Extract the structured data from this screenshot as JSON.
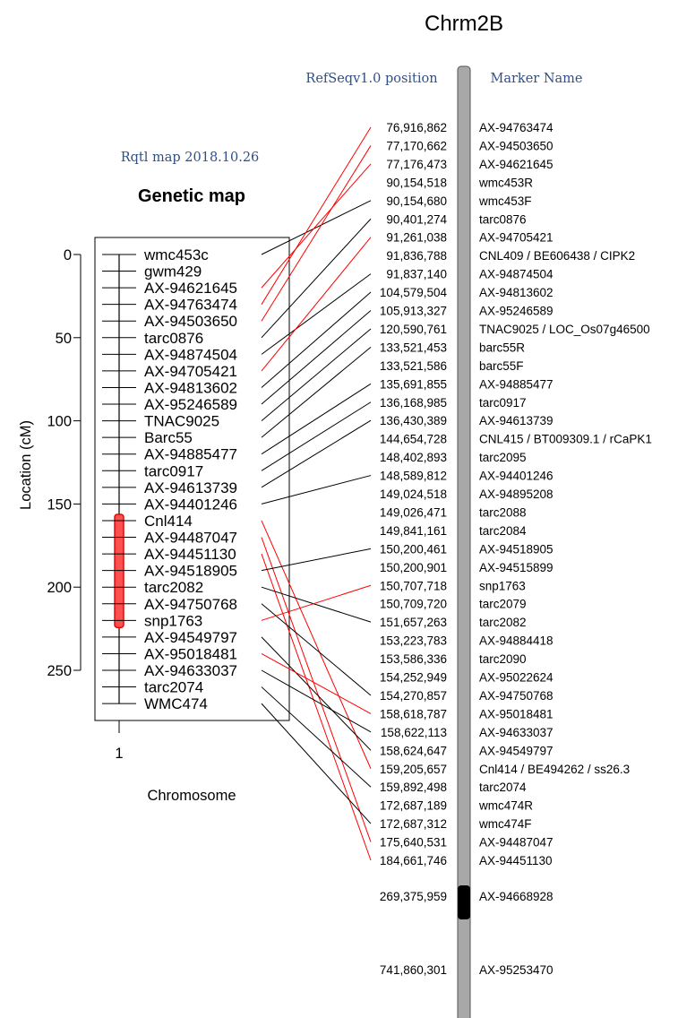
{
  "title": "Chrm2B",
  "map_version": "Rqtl map 2018.10.26",
  "genetic_map": {
    "title": "Genetic map",
    "y_label": "Location (cM)",
    "x_label": "Chromosome",
    "x_tick": "1",
    "y_ticks": [
      "0",
      "50",
      "100",
      "150",
      "200",
      "250"
    ],
    "markers": [
      {
        "name": "wmc453c",
        "cM": 0
      },
      {
        "name": "gwm429",
        "cM": 10
      },
      {
        "name": "AX-94621645",
        "cM": 20
      },
      {
        "name": "AX-94763474",
        "cM": 30
      },
      {
        "name": "AX-94503650",
        "cM": 40
      },
      {
        "name": "tarc0876",
        "cM": 50
      },
      {
        "name": "AX-94874504",
        "cM": 60
      },
      {
        "name": "AX-94705421",
        "cM": 70
      },
      {
        "name": "AX-94813602",
        "cM": 80
      },
      {
        "name": "AX-95246589",
        "cM": 90
      },
      {
        "name": "TNAC9025",
        "cM": 100
      },
      {
        "name": "Barc55",
        "cM": 110
      },
      {
        "name": "AX-94885477",
        "cM": 120
      },
      {
        "name": "tarc0917",
        "cM": 130
      },
      {
        "name": "AX-94613739",
        "cM": 140
      },
      {
        "name": "AX-94401246",
        "cM": 150
      },
      {
        "name": "Cnl414",
        "cM": 160
      },
      {
        "name": "AX-94487047",
        "cM": 170
      },
      {
        "name": "AX-94451130",
        "cM": 180
      },
      {
        "name": "AX-94518905",
        "cM": 190
      },
      {
        "name": "tarc2082",
        "cM": 200
      },
      {
        "name": "AX-94750768",
        "cM": 210
      },
      {
        "name": "snp1763",
        "cM": 220
      },
      {
        "name": "AX-94549797",
        "cM": 230
      },
      {
        "name": "AX-95018481",
        "cM": 240
      },
      {
        "name": "AX-94633037",
        "cM": 250
      },
      {
        "name": "tarc2074",
        "cM": 260
      },
      {
        "name": "WMC474",
        "cM": 270
      }
    ],
    "qtl_interval": {
      "from_marker": "Cnl414",
      "to_marker": "snp1763",
      "color": "#ff5050"
    }
  },
  "physical_map": {
    "position_header": "RefSeqv1.0 position",
    "name_header": "Marker Name",
    "rows": [
      {
        "position": "76,916,862",
        "name": "AX-94763474"
      },
      {
        "position": "77,170,662",
        "name": "AX-94503650"
      },
      {
        "position": "77,176,473",
        "name": "AX-94621645"
      },
      {
        "position": "90,154,518",
        "name": "wmc453R"
      },
      {
        "position": "90,154,680",
        "name": "wmc453F"
      },
      {
        "position": "90,401,274",
        "name": "tarc0876"
      },
      {
        "position": "91,261,038",
        "name": "AX-94705421"
      },
      {
        "position": "91,836,788",
        "name": "CNL409 / BE606438 / CIPK2"
      },
      {
        "position": "91,837,140",
        "name": "AX-94874504"
      },
      {
        "position": "104,579,504",
        "name": "AX-94813602"
      },
      {
        "position": "105,913,327",
        "name": "AX-95246589"
      },
      {
        "position": "120,590,761",
        "name": "TNAC9025 / LOC_Os07g46500"
      },
      {
        "position": "133,521,453",
        "name": "barc55R"
      },
      {
        "position": "133,521,586",
        "name": "barc55F"
      },
      {
        "position": "135,691,855",
        "name": "AX-94885477"
      },
      {
        "position": "136,168,985",
        "name": "tarc0917"
      },
      {
        "position": "136,430,389",
        "name": "AX-94613739"
      },
      {
        "position": "144,654,728",
        "name": "CNL415 / BT009309.1 / rCaPK1"
      },
      {
        "position": "148,402,893",
        "name": "tarc2095"
      },
      {
        "position": "148,589,812",
        "name": "AX-94401246"
      },
      {
        "position": "149,024,518",
        "name": "AX-94895208"
      },
      {
        "position": "149,026,471",
        "name": "tarc2088"
      },
      {
        "position": "149,841,161",
        "name": "tarc2084"
      },
      {
        "position": "150,200,461",
        "name": "AX-94518905"
      },
      {
        "position": "150,200,901",
        "name": "AX-94515899"
      },
      {
        "position": "150,707,718",
        "name": "snp1763"
      },
      {
        "position": "150,709,720",
        "name": "tarc2079"
      },
      {
        "position": "151,657,263",
        "name": "tarc2082"
      },
      {
        "position": "153,223,783",
        "name": "AX-94884418"
      },
      {
        "position": "153,586,336",
        "name": "tarc2090"
      },
      {
        "position": "154,252,949",
        "name": "AX-95022624"
      },
      {
        "position": "154,270,857",
        "name": "AX-94750768"
      },
      {
        "position": "158,618,787",
        "name": "AX-95018481"
      },
      {
        "position": "158,622,113",
        "name": "AX-94633037"
      },
      {
        "position": "158,624,647",
        "name": "AX-94549797"
      },
      {
        "position": "159,205,657",
        "name": "Cnl414 / BE494262 / ss26.3"
      },
      {
        "position": "159,892,498",
        "name": "tarc2074"
      },
      {
        "position": "172,687,189",
        "name": "wmc474R"
      },
      {
        "position": "172,687,312",
        "name": "wmc474F"
      },
      {
        "position": "175,640,531",
        "name": "AX-94487047"
      },
      {
        "position": "184,661,746",
        "name": "AX-94451130"
      },
      {
        "position": "269,375,959",
        "name": "AX-94668928"
      },
      {
        "position": "741,860,301",
        "name": "AX-95253470"
      }
    ],
    "centromere_row": 41
  },
  "connections": [
    {
      "marker": 0,
      "row": 4,
      "color": "#000000"
    },
    {
      "marker": 2,
      "row": 2,
      "color": "#ff0000"
    },
    {
      "marker": 3,
      "row": 0,
      "color": "#ff0000"
    },
    {
      "marker": 4,
      "row": 1,
      "color": "#ff0000"
    },
    {
      "marker": 5,
      "row": 5,
      "color": "#000000"
    },
    {
      "marker": 6,
      "row": 8,
      "color": "#000000"
    },
    {
      "marker": 7,
      "row": 6,
      "color": "#ff0000"
    },
    {
      "marker": 8,
      "row": 9,
      "color": "#000000"
    },
    {
      "marker": 9,
      "row": 10,
      "color": "#000000"
    },
    {
      "marker": 10,
      "row": 11,
      "color": "#000000"
    },
    {
      "marker": 11,
      "row": 12,
      "color": "#000000"
    },
    {
      "marker": 12,
      "row": 14,
      "color": "#000000"
    },
    {
      "marker": 13,
      "row": 15,
      "color": "#000000"
    },
    {
      "marker": 14,
      "row": 16,
      "color": "#000000"
    },
    {
      "marker": 15,
      "row": 19,
      "color": "#000000"
    },
    {
      "marker": 16,
      "row": 35,
      "color": "#ff0000"
    },
    {
      "marker": 17,
      "row": 39,
      "color": "#ff0000"
    },
    {
      "marker": 18,
      "row": 40,
      "color": "#ff0000"
    },
    {
      "marker": 19,
      "row": 23,
      "color": "#000000"
    },
    {
      "marker": 20,
      "row": 27,
      "color": "#000000"
    },
    {
      "marker": 21,
      "row": 31,
      "color": "#000000"
    },
    {
      "marker": 22,
      "row": 25,
      "color": "#ff0000"
    },
    {
      "marker": 23,
      "row": 34,
      "color": "#000000"
    },
    {
      "marker": 24,
      "row": 32,
      "color": "#ff0000"
    },
    {
      "marker": 25,
      "row": 33,
      "color": "#000000"
    },
    {
      "marker": 26,
      "row": 36,
      "color": "#000000"
    },
    {
      "marker": 27,
      "row": 38,
      "color": "#000000"
    }
  ]
}
